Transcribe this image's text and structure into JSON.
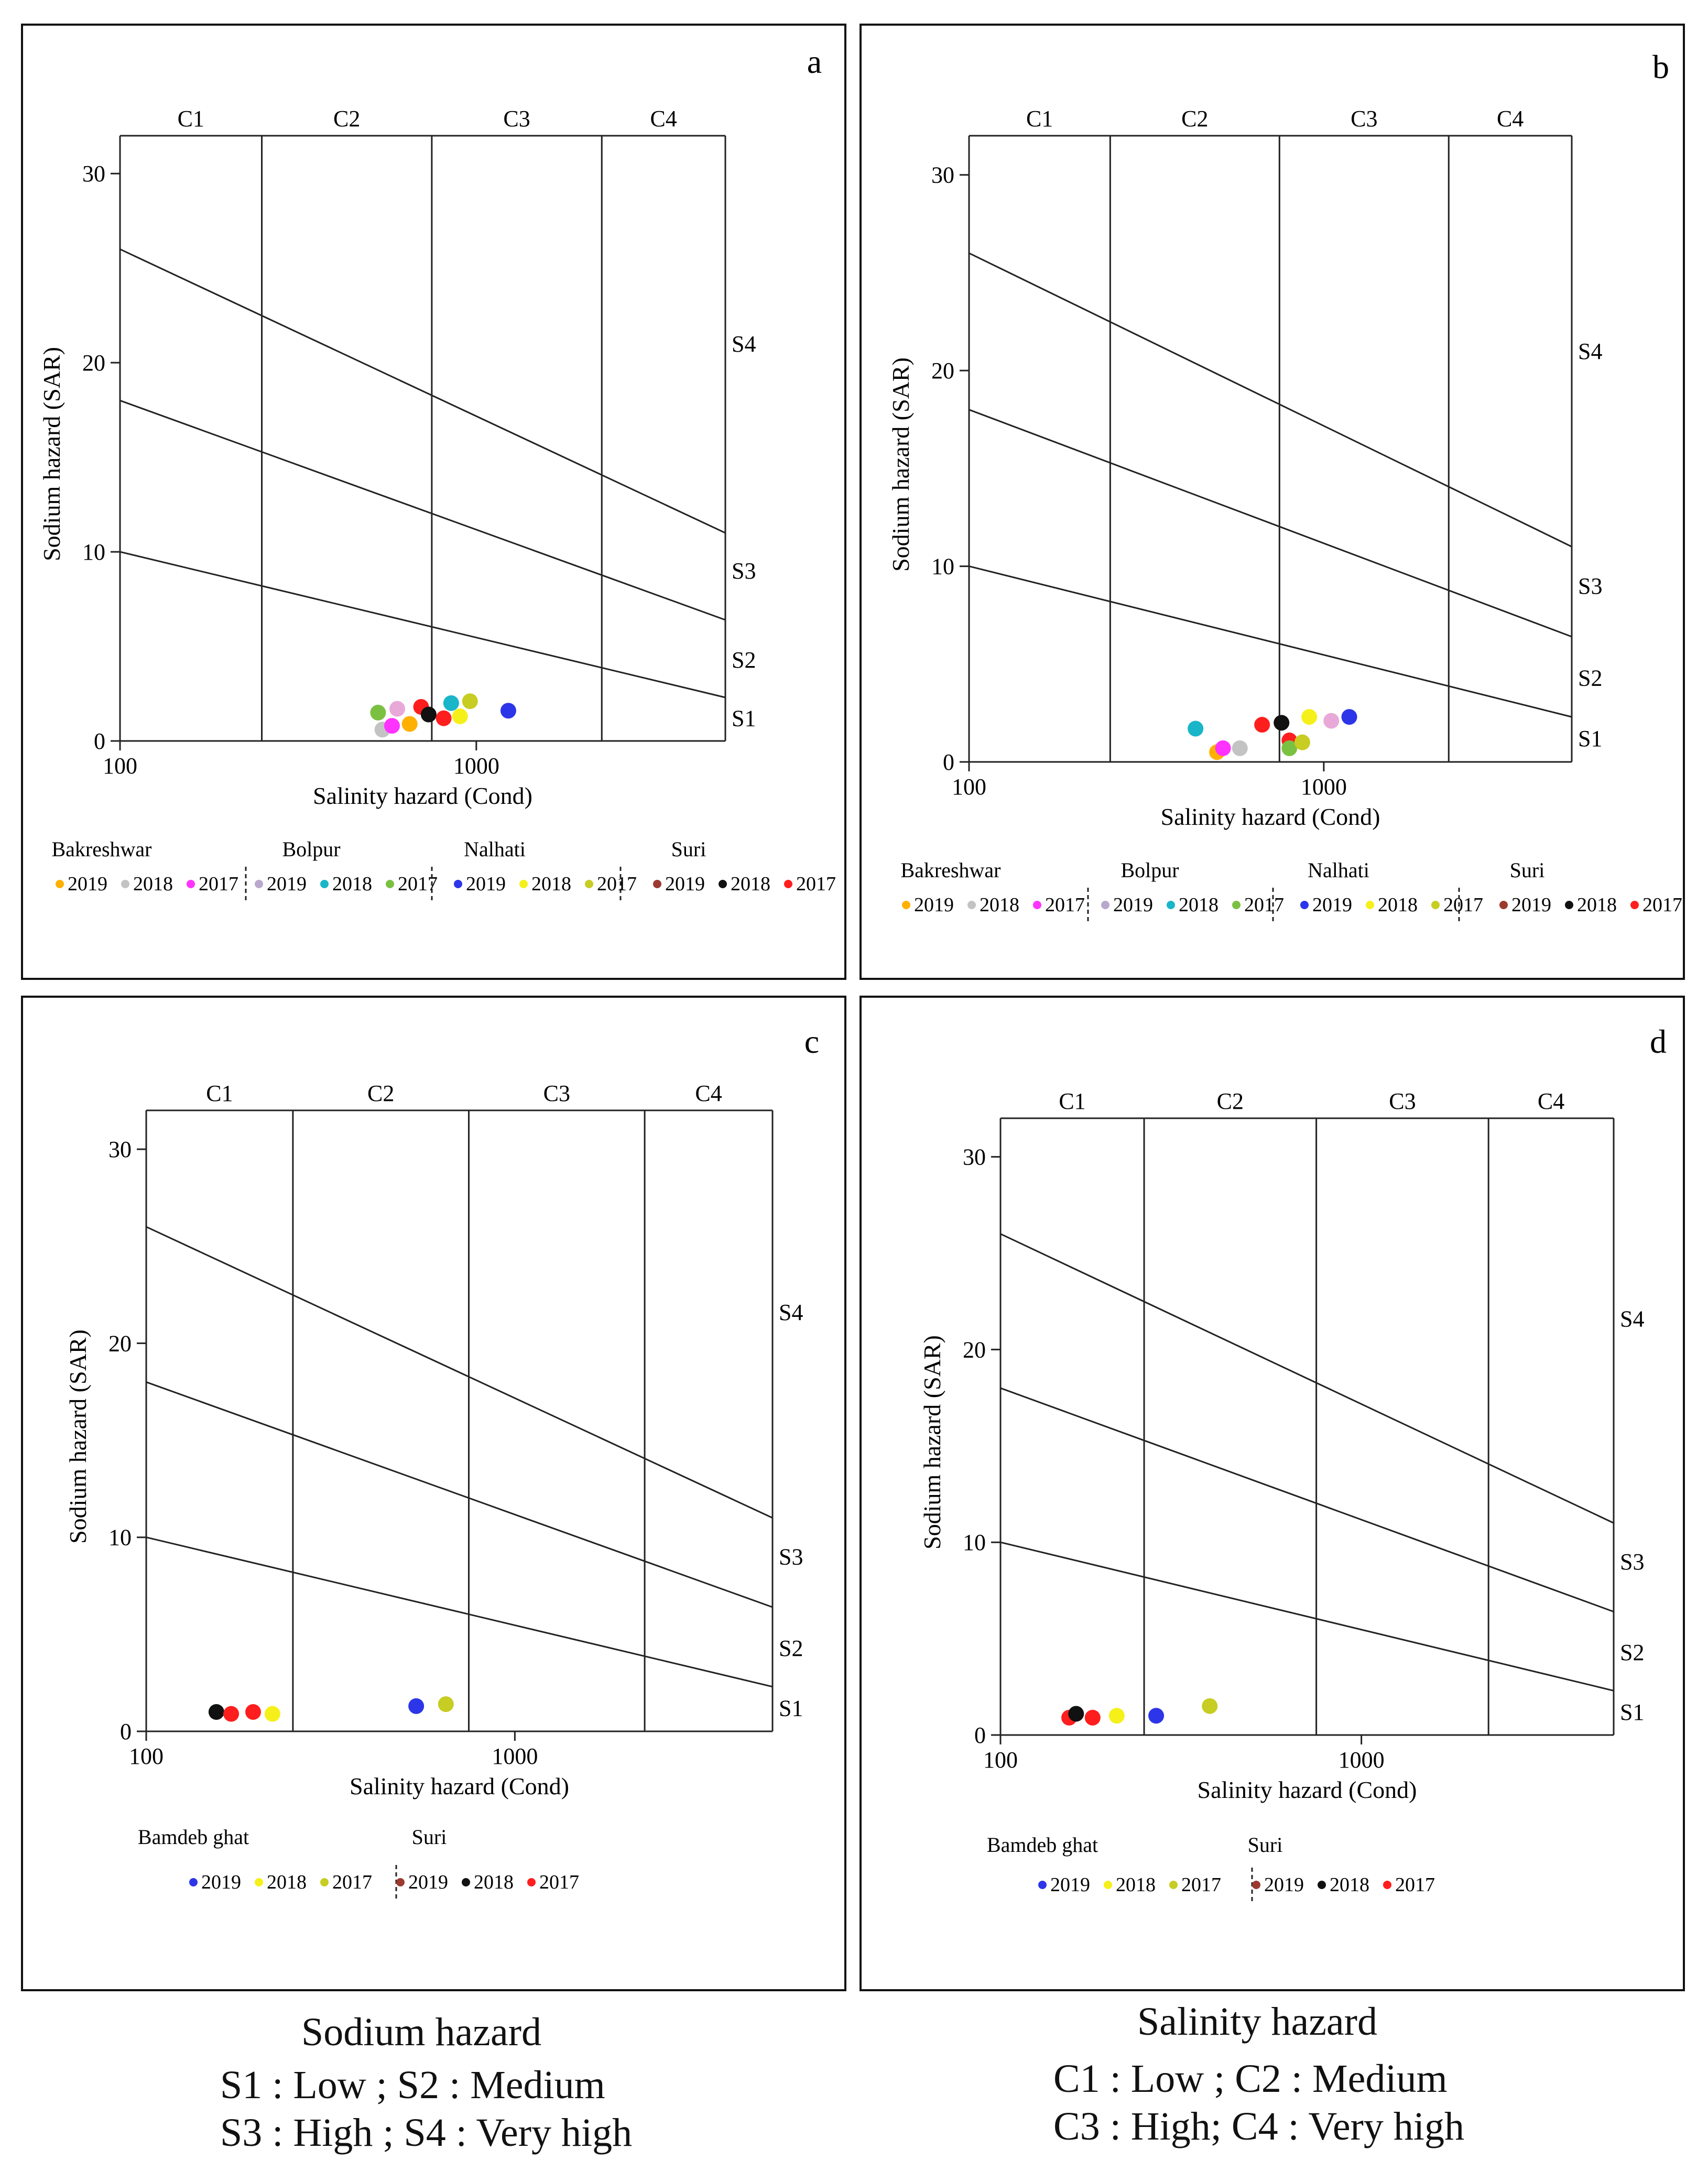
{
  "colors": {
    "orange": "#ffb000",
    "lightgray": "#c3c3c3",
    "magenta": "#ff33ff",
    "lavender": "#b8a9cc",
    "cyan": "#19b5c8",
    "green": "#7ac142",
    "blue": "#2d35e8",
    "yellow": "#f5f01a",
    "olive": "#c7cd22",
    "brown": "#9c3a2f",
    "black": "#111111",
    "red": "#ff1e1e",
    "pink": "#e9a9d8"
  },
  "chart_data": [
    {
      "panel": "a",
      "type": "scatter",
      "xlabel": "Salinity hazard (Cond)",
      "ylabel": "Sodium hazard (SAR)",
      "x_scale": "log",
      "xlim": [
        100,
        5000
      ],
      "ylim": [
        0,
        32
      ],
      "x_ticks": [
        100,
        1000
      ],
      "y_ticks": [
        0,
        10,
        20,
        30
      ],
      "class_labels": [
        "C1",
        "C2",
        "C3",
        "C4"
      ],
      "class_bounds": [
        250,
        750,
        2250
      ],
      "sar_lines": [
        {
          "label": "S1",
          "y_at_100": 10,
          "y_at_5000": 2.3
        },
        {
          "label": "S2",
          "y_at_100": 18,
          "y_at_5000": 6.4
        },
        {
          "label": "S3",
          "y_at_100": 26,
          "y_at_5000": 11
        }
      ],
      "sar_labels": [
        {
          "label": "S4",
          "y": 21.0
        },
        {
          "label": "S3",
          "y": 9.0
        },
        {
          "label": "S2",
          "y": 4.3
        },
        {
          "label": "S1",
          "y": 1.2
        }
      ],
      "legend": {
        "groups": [
          {
            "name": "Bakreshwar",
            "entries": [
              {
                "year": "2019",
                "color": "orange"
              },
              {
                "year": "2018",
                "color": "lightgray"
              },
              {
                "year": "2017",
                "color": "magenta"
              }
            ]
          },
          {
            "name": "Bolpur",
            "entries": [
              {
                "year": "2019",
                "color": "lavender"
              },
              {
                "year": "2018",
                "color": "cyan"
              },
              {
                "year": "2017",
                "color": "green"
              }
            ]
          },
          {
            "name": "Nalhati",
            "entries": [
              {
                "year": "2019",
                "color": "blue"
              },
              {
                "year": "2018",
                "color": "yellow"
              },
              {
                "year": "2017",
                "color": "olive"
              }
            ]
          },
          {
            "name": "Suri",
            "entries": [
              {
                "year": "2019",
                "color": "brown"
              },
              {
                "year": "2018",
                "color": "black"
              },
              {
                "year": "2017",
                "color": "red"
              }
            ]
          }
        ]
      },
      "points": [
        {
          "x": 530,
          "y": 1.5,
          "color": "green"
        },
        {
          "x": 545,
          "y": 0.6,
          "color": "lightgray"
        },
        {
          "x": 580,
          "y": 0.8,
          "color": "magenta"
        },
        {
          "x": 600,
          "y": 1.7,
          "color": "pink"
        },
        {
          "x": 650,
          "y": 0.9,
          "color": "orange"
        },
        {
          "x": 700,
          "y": 1.8,
          "color": "red"
        },
        {
          "x": 735,
          "y": 1.4,
          "color": "black"
        },
        {
          "x": 810,
          "y": 1.2,
          "color": "red"
        },
        {
          "x": 850,
          "y": 2.0,
          "color": "cyan"
        },
        {
          "x": 900,
          "y": 1.3,
          "color": "yellow"
        },
        {
          "x": 960,
          "y": 2.1,
          "color": "olive"
        },
        {
          "x": 1230,
          "y": 1.6,
          "color": "blue"
        }
      ]
    },
    {
      "panel": "b",
      "type": "scatter",
      "xlabel": "Salinity hazard (Cond)",
      "ylabel": "Sodium hazard (SAR)",
      "x_scale": "log",
      "xlim": [
        100,
        5000
      ],
      "ylim": [
        0,
        32
      ],
      "x_ticks": [
        100,
        1000
      ],
      "y_ticks": [
        0,
        10,
        20,
        30
      ],
      "class_labels": [
        "C1",
        "C2",
        "C3",
        "C4"
      ],
      "class_bounds": [
        250,
        750,
        2250
      ],
      "sar_lines": [
        {
          "label": "S1",
          "y_at_100": 10,
          "y_at_5000": 2.3
        },
        {
          "label": "S2",
          "y_at_100": 18,
          "y_at_5000": 6.4
        },
        {
          "label": "S3",
          "y_at_100": 26,
          "y_at_5000": 11
        }
      ],
      "sar_labels": [
        {
          "label": "S4",
          "y": 21.0
        },
        {
          "label": "S3",
          "y": 9.0
        },
        {
          "label": "S2",
          "y": 4.3
        },
        {
          "label": "S1",
          "y": 1.2
        }
      ],
      "legend": {
        "groups": [
          {
            "name": "Bakreshwar",
            "entries": [
              {
                "year": "2019",
                "color": "orange"
              },
              {
                "year": "2018",
                "color": "lightgray"
              },
              {
                "year": "2017",
                "color": "magenta"
              }
            ]
          },
          {
            "name": "Bolpur",
            "entries": [
              {
                "year": "2019",
                "color": "lavender"
              },
              {
                "year": "2018",
                "color": "cyan"
              },
              {
                "year": "2017",
                "color": "green"
              }
            ]
          },
          {
            "name": "Nalhati",
            "entries": [
              {
                "year": "2019",
                "color": "blue"
              },
              {
                "year": "2018",
                "color": "yellow"
              },
              {
                "year": "2017",
                "color": "olive"
              }
            ]
          },
          {
            "name": "Suri",
            "entries": [
              {
                "year": "2019",
                "color": "brown"
              },
              {
                "year": "2018",
                "color": "black"
              },
              {
                "year": "2017",
                "color": "red"
              }
            ]
          }
        ]
      },
      "points": [
        {
          "x": 435,
          "y": 1.7,
          "color": "cyan"
        },
        {
          "x": 500,
          "y": 0.5,
          "color": "orange"
        },
        {
          "x": 520,
          "y": 0.7,
          "color": "magenta"
        },
        {
          "x": 580,
          "y": 0.7,
          "color": "lightgray"
        },
        {
          "x": 670,
          "y": 1.9,
          "color": "red"
        },
        {
          "x": 760,
          "y": 2.0,
          "color": "black"
        },
        {
          "x": 800,
          "y": 1.1,
          "color": "red"
        },
        {
          "x": 800,
          "y": 0.7,
          "color": "green"
        },
        {
          "x": 870,
          "y": 1.0,
          "color": "olive"
        },
        {
          "x": 910,
          "y": 2.3,
          "color": "yellow"
        },
        {
          "x": 1050,
          "y": 2.1,
          "color": "pink"
        },
        {
          "x": 1180,
          "y": 2.3,
          "color": "blue"
        }
      ]
    },
    {
      "panel": "c",
      "type": "scatter",
      "xlabel": "Salinity hazard (Cond)",
      "ylabel": "Sodium hazard (SAR)",
      "x_scale": "log",
      "xlim": [
        100,
        5000
      ],
      "ylim": [
        0,
        32
      ],
      "x_ticks": [
        100,
        1000
      ],
      "y_ticks": [
        0,
        10,
        20,
        30
      ],
      "class_labels": [
        "C1",
        "C2",
        "C3",
        "C4"
      ],
      "class_bounds": [
        250,
        750,
        2250
      ],
      "sar_lines": [
        {
          "label": "S1",
          "y_at_100": 10,
          "y_at_5000": 2.3
        },
        {
          "label": "S2",
          "y_at_100": 18,
          "y_at_5000": 6.4
        },
        {
          "label": "S3",
          "y_at_100": 26,
          "y_at_5000": 11
        }
      ],
      "sar_labels": [
        {
          "label": "S4",
          "y": 21.6
        },
        {
          "label": "S3",
          "y": 9.0
        },
        {
          "label": "S2",
          "y": 4.3
        },
        {
          "label": "S1",
          "y": 1.2
        }
      ],
      "legend": {
        "groups": [
          {
            "name": "Bamdeb ghat",
            "entries": [
              {
                "year": "2019",
                "color": "blue"
              },
              {
                "year": "2018",
                "color": "yellow"
              },
              {
                "year": "2017",
                "color": "olive"
              }
            ]
          },
          {
            "name": "Suri",
            "entries": [
              {
                "year": "2019",
                "color": "brown"
              },
              {
                "year": "2018",
                "color": "black"
              },
              {
                "year": "2017",
                "color": "red"
              }
            ]
          }
        ]
      },
      "points": [
        {
          "x": 155,
          "y": 1.0,
          "color": "black"
        },
        {
          "x": 170,
          "y": 0.9,
          "color": "red"
        },
        {
          "x": 195,
          "y": 1.0,
          "color": "red"
        },
        {
          "x": 220,
          "y": 0.9,
          "color": "yellow"
        },
        {
          "x": 540,
          "y": 1.3,
          "color": "blue"
        },
        {
          "x": 650,
          "y": 1.4,
          "color": "olive"
        }
      ]
    },
    {
      "panel": "d",
      "type": "scatter",
      "xlabel": "Salinity hazard (Cond)",
      "ylabel": "Sodium hazard (SAR)",
      "x_scale": "log",
      "xlim": [
        100,
        5000
      ],
      "ylim": [
        0,
        32
      ],
      "x_ticks": [
        100,
        1000
      ],
      "y_ticks": [
        0,
        10,
        20,
        30
      ],
      "class_labels": [
        "C1",
        "C2",
        "C3",
        "C4"
      ],
      "class_bounds": [
        250,
        750,
        2250
      ],
      "sar_lines": [
        {
          "label": "S1",
          "y_at_100": 10,
          "y_at_5000": 2.3
        },
        {
          "label": "S2",
          "y_at_100": 18,
          "y_at_5000": 6.4
        },
        {
          "label": "S3",
          "y_at_100": 26,
          "y_at_5000": 11
        }
      ],
      "sar_labels": [
        {
          "label": "S4",
          "y": 21.6
        },
        {
          "label": "S3",
          "y": 9.0
        },
        {
          "label": "S2",
          "y": 4.3
        },
        {
          "label": "S1",
          "y": 1.2
        }
      ],
      "legend": {
        "groups": [
          {
            "name": "Bamdeb ghat",
            "entries": [
              {
                "year": "2019",
                "color": "blue"
              },
              {
                "year": "2018",
                "color": "yellow"
              },
              {
                "year": "2017",
                "color": "olive"
              }
            ]
          },
          {
            "name": "Suri",
            "entries": [
              {
                "year": "2019",
                "color": "brown"
              },
              {
                "year": "2018",
                "color": "black"
              },
              {
                "year": "2017",
                "color": "red"
              }
            ]
          }
        ]
      },
      "points": [
        {
          "x": 155,
          "y": 0.9,
          "color": "red"
        },
        {
          "x": 162,
          "y": 1.1,
          "color": "black"
        },
        {
          "x": 180,
          "y": 0.9,
          "color": "red"
        },
        {
          "x": 210,
          "y": 1.0,
          "color": "yellow"
        },
        {
          "x": 270,
          "y": 1.0,
          "color": "blue"
        },
        {
          "x": 380,
          "y": 1.5,
          "color": "olive"
        }
      ]
    }
  ],
  "captions": {
    "sodium": {
      "title": "Sodium hazard",
      "line1": "S1 : Low ; S2 : Medium",
      "line2": "S3 : High ; S4 : Very high"
    },
    "salinity": {
      "title": "Salinity hazard",
      "line1": "C1 : Low ; C2 : Medium",
      "line2": "C3 : High; C4 : Very high"
    }
  }
}
